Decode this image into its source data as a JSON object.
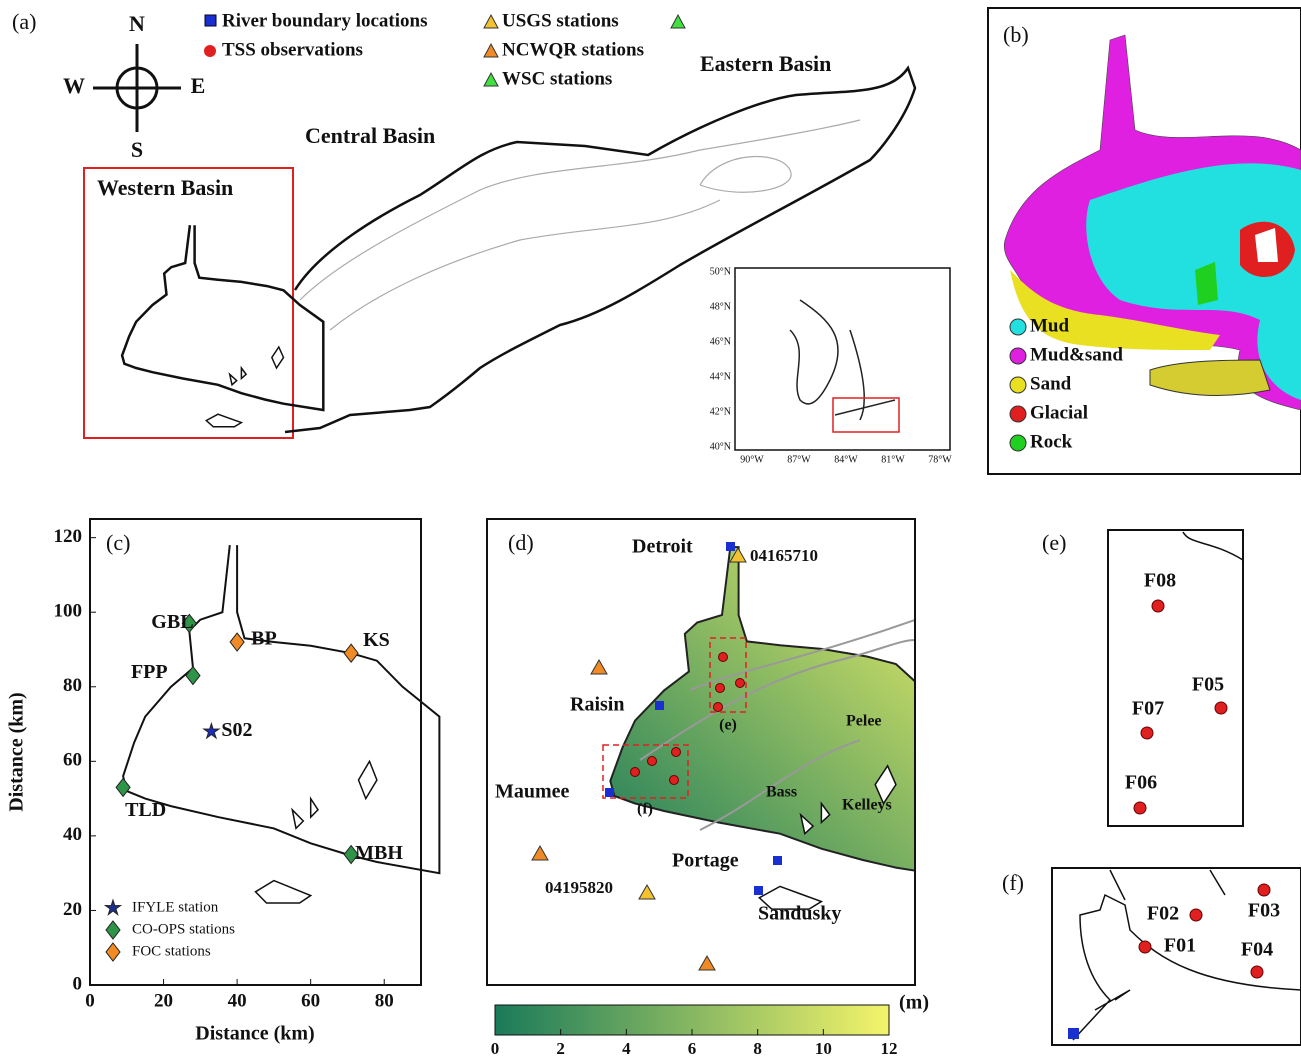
{
  "panels": {
    "a": {
      "label": "(a)",
      "compass": {
        "n": "N",
        "s": "S",
        "w": "W",
        "e": "E"
      },
      "legend": [
        "River boundary locations",
        "TSS observations",
        "USGS stations",
        "NCWQR stations",
        "WSC stations"
      ],
      "basins": [
        "Western Basin",
        "Central Basin",
        "Eastern Basin"
      ],
      "inset": {
        "yticks": [
          "50°N",
          "48°N",
          "46°N",
          "44°N",
          "42°N",
          "40°N"
        ],
        "xticks": [
          "90°W",
          "87°W",
          "84°W",
          "81°W",
          "78°W"
        ]
      }
    },
    "b": {
      "label": "(b)",
      "legend": [
        {
          "name": "Mud",
          "color": "#22e0e0"
        },
        {
          "name": "Mud&sand",
          "color": "#e020e0"
        },
        {
          "name": "Sand",
          "color": "#e8e020"
        },
        {
          "name": "Glacial",
          "color": "#e02020"
        },
        {
          "name": "Rock",
          "color": "#20d020"
        }
      ]
    },
    "c": {
      "label": "(c)",
      "xlabel": "Distance (km)",
      "ylabel": "Distance (km)",
      "xlim": [
        0,
        90
      ],
      "ylim": [
        0,
        125
      ],
      "xticks": [
        0,
        20,
        40,
        60,
        80
      ],
      "yticks": [
        0,
        20,
        40,
        60,
        80,
        100,
        120
      ],
      "stations": [
        {
          "name": "GBL",
          "x": 27,
          "y": 97,
          "color": "#2e9448",
          "marker": "diamond"
        },
        {
          "name": "BP",
          "x": 40,
          "y": 92,
          "color": "#f08a24",
          "marker": "diamond"
        },
        {
          "name": "KS",
          "x": 71,
          "y": 89,
          "color": "#f08a24",
          "marker": "diamond"
        },
        {
          "name": "FPP",
          "x": 28,
          "y": 83,
          "color": "#2e9448",
          "marker": "diamond"
        },
        {
          "name": "S02",
          "x": 33,
          "y": 68,
          "color": "#1a2fbf",
          "marker": "star"
        },
        {
          "name": "TLD",
          "x": 9,
          "y": 53,
          "color": "#2e9448",
          "marker": "diamond"
        },
        {
          "name": "MBH",
          "x": 71,
          "y": 35,
          "color": "#2e9448",
          "marker": "diamond"
        }
      ],
      "legend": [
        {
          "name": "IFYLE station",
          "color": "#1a2f8f",
          "marker": "star"
        },
        {
          "name": "CO-OPS stations",
          "color": "#2e9448",
          "marker": "diamond"
        },
        {
          "name": "FOC stations",
          "color": "#f08a24",
          "marker": "diamond"
        }
      ]
    },
    "d": {
      "label": "(d)",
      "places": {
        "detroit": "Detroit",
        "usgs1": "04165710",
        "raisin": "Raisin",
        "maumee": "Maumee",
        "e": "(e)",
        "f": "(f)",
        "pelee": "Pelee",
        "bass": "Bass",
        "kelleys": "Kelleys",
        "portage": "Portage",
        "sandusky": "Sandusky",
        "usgs2": "04195820"
      },
      "colorbar": {
        "unit": "(m)",
        "lim": [
          0,
          12
        ],
        "ticks": [
          0,
          2,
          4,
          6,
          8,
          10,
          12
        ],
        "colors": [
          "#1a7a5a",
          "#f4f46a"
        ]
      }
    },
    "e": {
      "label": "(e)",
      "stations": [
        "F08",
        "F07",
        "F05",
        "F06"
      ]
    },
    "f": {
      "label": "(f)",
      "stations": [
        "F02",
        "F03",
        "F01",
        "F04"
      ]
    }
  }
}
